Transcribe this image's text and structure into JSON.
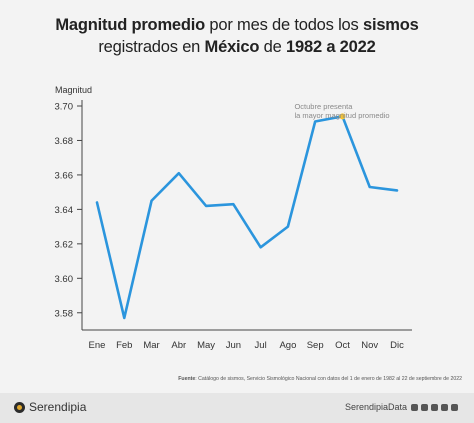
{
  "title": {
    "part1_bold": "Magnitud promedio",
    "part2": " por mes de todos los ",
    "part3_bold": "sismos",
    "part4": "registrados en ",
    "part5_bold": "México",
    "part6": " de ",
    "part7_bold": "1982 a 2022"
  },
  "chart_data": {
    "type": "line",
    "ylabel": "Magnitud",
    "categories": [
      "Ene",
      "Feb",
      "Mar",
      "Abr",
      "May",
      "Jun",
      "Jul",
      "Ago",
      "Sep",
      "Oct",
      "Nov",
      "Dic"
    ],
    "series": [
      {
        "values": [
          3.644,
          3.577,
          3.645,
          3.661,
          3.642,
          3.643,
          3.618,
          3.63,
          3.691,
          3.694,
          3.653,
          3.651
        ]
      }
    ],
    "ylim": [
      3.57,
      3.7
    ],
    "yticks": [
      3.58,
      3.6,
      3.62,
      3.64,
      3.66,
      3.68,
      3.7
    ],
    "ytick_labels": [
      "3.58",
      "3.60",
      "3.62",
      "3.64",
      "3.66",
      "3.68",
      "3.70"
    ],
    "grid": false,
    "highlight_index": 9,
    "annotation": {
      "line1": "Octubre presenta",
      "line2": "la mayor magnitud promedio"
    },
    "line_color": "#2b95dd",
    "highlight_color": "#f7c531"
  },
  "source": {
    "label": "Fuente",
    "text": ": Catálogo de sismos, Servicio Sismológico Nacional con datos del 1 de enero de 1982 al 22 de septiembre de 2022"
  },
  "footer": {
    "brand": "Serendipia",
    "handle": "SerendipiaData"
  }
}
